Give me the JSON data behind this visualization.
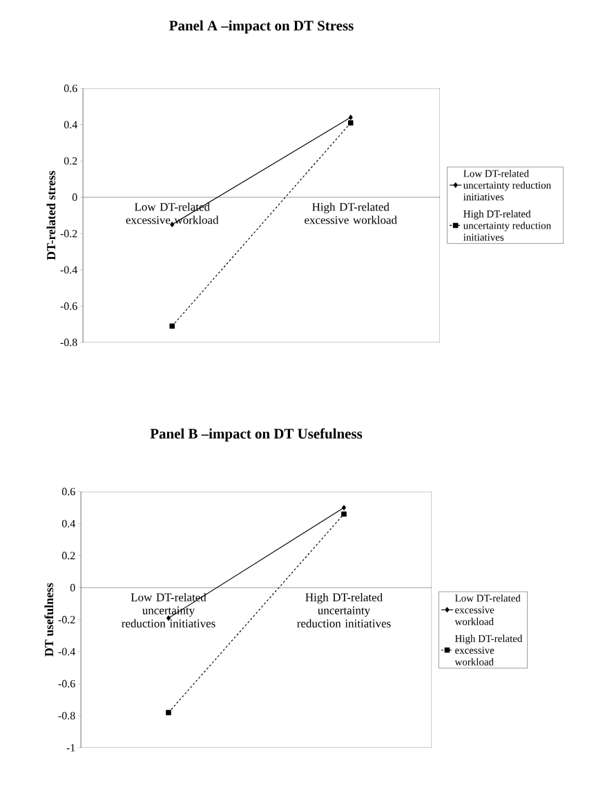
{
  "chart_data": [
    {
      "type": "line",
      "title": "Panel A –impact on DT Stress",
      "ylabel": "DT-related stress",
      "categories": [
        "Low DT-related excessive workload",
        "High DT-related excessive workload"
      ],
      "series": [
        {
          "name": "Low DT-related uncertainty reduction initiatives",
          "color": "#000000",
          "values": [
            -0.15,
            0.44
          ],
          "marker": "diamond",
          "line_style": "solid"
        },
        {
          "name": "High DT-related uncertainty reduction initiatives",
          "color": "#000000",
          "values": [
            -0.71,
            0.41
          ],
          "marker": "square",
          "line_style": "dashed"
        }
      ],
      "ylim": [
        -0.8,
        0.6
      ],
      "yticks": [
        -0.8,
        -0.6,
        -0.4,
        -0.2,
        0,
        0.2,
        0.4,
        0.6
      ],
      "legend": "right"
    },
    {
      "type": "line",
      "title": "Panel B –impact on DT Usefulness",
      "ylabel": "DT usefulness",
      "categories": [
        "Low DT-related uncertainty reduction initiatives",
        "High DT-related uncertainty reduction initiatives"
      ],
      "series": [
        {
          "name": "Low DT-related excessive workload",
          "color": "#000000",
          "values": [
            -0.19,
            0.5
          ],
          "marker": "diamond",
          "line_style": "solid"
        },
        {
          "name": "High DT-related excessive workload",
          "color": "#000000",
          "values": [
            -0.78,
            0.46
          ],
          "marker": "square",
          "line_style": "dashed"
        }
      ],
      "ylim": [
        -1,
        0.6
      ],
      "yticks": [
        -1,
        -0.8,
        -0.6,
        -0.4,
        -0.2,
        0,
        0.2,
        0.4,
        0.6
      ],
      "legend": "right"
    }
  ]
}
